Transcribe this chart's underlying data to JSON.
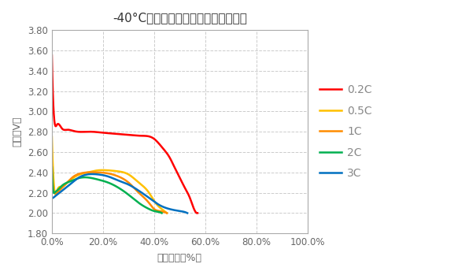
{
  "title": "-40°C下不同倍率放电的电池容量曲线",
  "xlabel": "电池容量（%）",
  "ylabel": "电压（V）",
  "xlim": [
    0.0,
    1.0
  ],
  "ylim": [
    1.8,
    3.8
  ],
  "xticks": [
    0.0,
    0.2,
    0.4,
    0.6,
    0.8,
    1.0
  ],
  "yticks": [
    1.8,
    2.0,
    2.2,
    2.4,
    2.6,
    2.8,
    3.0,
    3.2,
    3.4,
    3.6,
    3.8
  ],
  "xtick_labels": [
    "0.0%",
    "20.0%",
    "40.0%",
    "60.0%",
    "80.0%",
    "100.0%"
  ],
  "ytick_labels": [
    "1.80",
    "2.00",
    "2.20",
    "2.40",
    "2.60",
    "2.80",
    "3.00",
    "3.20",
    "3.40",
    "3.60",
    "3.80"
  ],
  "background_color": "#ffffff",
  "grid_color": "#cccccc",
  "text_color": "#666666",
  "legend_text_color": "#888888",
  "series": [
    {
      "label": "0.2C",
      "color": "#ff0000",
      "x": [
        0.0,
        0.005,
        0.01,
        0.02,
        0.04,
        0.06,
        0.08,
        0.1,
        0.15,
        0.2,
        0.25,
        0.3,
        0.35,
        0.4,
        0.42,
        0.44,
        0.46,
        0.48,
        0.5,
        0.52,
        0.54,
        0.56,
        0.57
      ],
      "y": [
        3.55,
        3.1,
        2.9,
        2.87,
        2.83,
        2.82,
        2.81,
        2.8,
        2.8,
        2.79,
        2.78,
        2.77,
        2.76,
        2.73,
        2.68,
        2.62,
        2.55,
        2.45,
        2.35,
        2.25,
        2.15,
        2.02,
        2.0
      ]
    },
    {
      "label": "0.5C",
      "color": "#ffc000",
      "x": [
        0.0,
        0.005,
        0.01,
        0.02,
        0.04,
        0.06,
        0.08,
        0.1,
        0.14,
        0.18,
        0.22,
        0.26,
        0.3,
        0.34,
        0.38,
        0.4,
        0.42,
        0.44,
        0.45
      ],
      "y": [
        2.75,
        2.4,
        2.22,
        2.22,
        2.26,
        2.3,
        2.34,
        2.37,
        2.4,
        2.42,
        2.42,
        2.41,
        2.38,
        2.3,
        2.2,
        2.12,
        2.06,
        2.02,
        2.0
      ]
    },
    {
      "label": "1C",
      "color": "#ff8c00",
      "x": [
        0.0,
        0.005,
        0.01,
        0.02,
        0.04,
        0.06,
        0.08,
        0.1,
        0.14,
        0.18,
        0.22,
        0.26,
        0.3,
        0.34,
        0.38,
        0.4,
        0.42,
        0.44,
        0.45
      ],
      "y": [
        2.45,
        2.25,
        2.2,
        2.2,
        2.25,
        2.3,
        2.35,
        2.38,
        2.4,
        2.4,
        2.39,
        2.36,
        2.3,
        2.2,
        2.1,
        2.04,
        2.02,
        2.01,
        2.0
      ]
    },
    {
      "label": "2C",
      "color": "#00b050",
      "x": [
        0.0,
        0.005,
        0.01,
        0.02,
        0.04,
        0.06,
        0.08,
        0.1,
        0.14,
        0.18,
        0.22,
        0.26,
        0.3,
        0.34,
        0.38,
        0.4,
        0.42,
        0.43
      ],
      "y": [
        2.45,
        2.22,
        2.2,
        2.22,
        2.27,
        2.3,
        2.32,
        2.34,
        2.35,
        2.33,
        2.3,
        2.25,
        2.18,
        2.1,
        2.04,
        2.02,
        2.01,
        2.0
      ]
    },
    {
      "label": "3C",
      "color": "#0070c0",
      "x": [
        0.0,
        0.005,
        0.01,
        0.02,
        0.04,
        0.06,
        0.08,
        0.1,
        0.14,
        0.18,
        0.22,
        0.26,
        0.3,
        0.34,
        0.38,
        0.42,
        0.46,
        0.5,
        0.52,
        0.53
      ],
      "y": [
        2.15,
        2.15,
        2.16,
        2.18,
        2.22,
        2.26,
        2.3,
        2.34,
        2.38,
        2.38,
        2.36,
        2.32,
        2.28,
        2.22,
        2.15,
        2.08,
        2.04,
        2.02,
        2.01,
        2.0
      ]
    }
  ]
}
